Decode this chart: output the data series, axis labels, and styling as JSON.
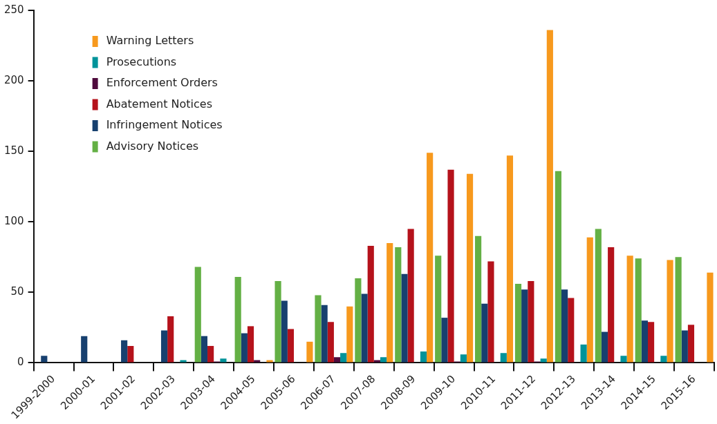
{
  "chart_data": {
    "type": "bar",
    "categories": [
      "1999-2000",
      "2000-01",
      "2001-02",
      "2002-03",
      "2003-04",
      "2004-05",
      "2005-06",
      "2006-07",
      "2007-08",
      "2008-09",
      "2009-10",
      "2010-11",
      "2011-12",
      "2012-13",
      "2013-14",
      "2014-15",
      "2015-16"
    ],
    "series": [
      {
        "name": "Advisory Notices",
        "color": "#64b045",
        "values": [
          0,
          0,
          0,
          0,
          68,
          61,
          58,
          48,
          60,
          82,
          76,
          90,
          56,
          136,
          95,
          74,
          75
        ]
      },
      {
        "name": "Infringement Notices",
        "color": "#17406f",
        "values": [
          5,
          19,
          16,
          23,
          19,
          21,
          44,
          41,
          49,
          63,
          32,
          42,
          52,
          52,
          22,
          30,
          23
        ]
      },
      {
        "name": "Abatement Notices",
        "color": "#b5121b",
        "values": [
          0,
          0,
          12,
          33,
          12,
          26,
          24,
          29,
          83,
          95,
          137,
          72,
          58,
          46,
          82,
          29,
          27
        ]
      },
      {
        "name": "Enforcement Orders",
        "color": "#4f0b3d",
        "values": [
          0,
          0,
          0,
          0,
          1,
          2,
          0,
          4,
          2,
          0,
          1,
          0,
          1,
          0,
          0,
          0,
          0
        ]
      },
      {
        "name": "Prosecutions",
        "color": "#00939a",
        "values": [
          0,
          0,
          0,
          2,
          3,
          0,
          0,
          7,
          4,
          8,
          6,
          7,
          3,
          13,
          5,
          5,
          0
        ]
      },
      {
        "name": "Warning Letters",
        "color": "#f7991d",
        "values": [
          0,
          0,
          0,
          0,
          0,
          2,
          15,
          40,
          85,
          149,
          134,
          147,
          236,
          89,
          76,
          73,
          64
        ]
      }
    ],
    "ylim": [
      0,
      250
    ],
    "yticks": [
      0,
      50,
      100,
      150,
      200,
      250
    ],
    "grid": false,
    "legend": "top left"
  }
}
